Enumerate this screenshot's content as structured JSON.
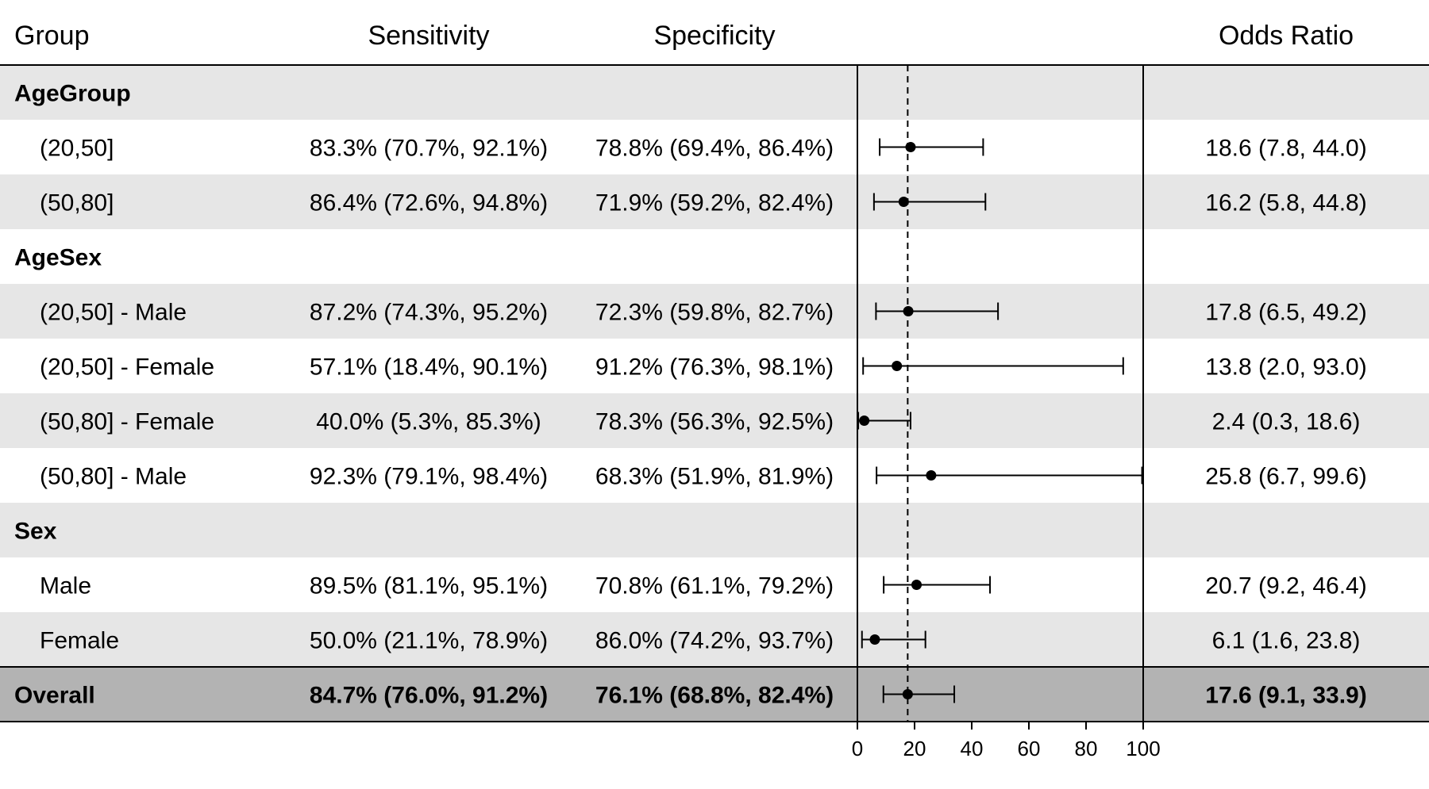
{
  "header": {
    "group": "Group",
    "sensitivity": "Sensitivity",
    "specificity": "Specificity",
    "odds_ratio": "Odds Ratio"
  },
  "rows": [
    {
      "kind": "section",
      "label": "AgeGroup",
      "shade": "light"
    },
    {
      "kind": "item",
      "label": "(20,50]",
      "sensitivity": "83.3% (70.7%, 92.1%)",
      "specificity": "78.8% (69.4%, 86.4%)",
      "odds_ratio": "18.6 (7.8, 44.0)",
      "shade": "white"
    },
    {
      "kind": "item",
      "label": "(50,80]",
      "sensitivity": "86.4% (72.6%, 94.8%)",
      "specificity": "71.9% (59.2%, 82.4%)",
      "odds_ratio": "16.2 (5.8, 44.8)",
      "shade": "light"
    },
    {
      "kind": "section",
      "label": "AgeSex",
      "shade": "white"
    },
    {
      "kind": "item",
      "label": "(20,50] - Male",
      "sensitivity": "87.2% (74.3%, 95.2%)",
      "specificity": "72.3% (59.8%, 82.7%)",
      "odds_ratio": "17.8 (6.5, 49.2)",
      "shade": "light"
    },
    {
      "kind": "item",
      "label": "(20,50] - Female",
      "sensitivity": "57.1% (18.4%, 90.1%)",
      "specificity": "91.2% (76.3%, 98.1%)",
      "odds_ratio": "13.8 (2.0, 93.0)",
      "shade": "white"
    },
    {
      "kind": "item",
      "label": "(50,80] - Female",
      "sensitivity": "40.0% (5.3%, 85.3%)",
      "specificity": "78.3% (56.3%, 92.5%)",
      "odds_ratio": "2.4 (0.3, 18.6)",
      "shade": "light"
    },
    {
      "kind": "item",
      "label": "(50,80] - Male",
      "sensitivity": "92.3% (79.1%, 98.4%)",
      "specificity": "68.3% (51.9%, 81.9%)",
      "odds_ratio": "25.8 (6.7, 99.6)",
      "shade": "white"
    },
    {
      "kind": "section",
      "label": "Sex",
      "shade": "light"
    },
    {
      "kind": "item",
      "label": "Male",
      "sensitivity": "89.5% (81.1%, 95.1%)",
      "specificity": "70.8% (61.1%, 79.2%)",
      "odds_ratio": "20.7 (9.2, 46.4)",
      "shade": "white"
    },
    {
      "kind": "item",
      "label": "Female",
      "sensitivity": "50.0% (21.1%, 78.9%)",
      "specificity": "86.0% (74.2%, 93.7%)",
      "odds_ratio": "6.1 (1.6, 23.8)",
      "shade": "light"
    },
    {
      "kind": "overall",
      "label": "Overall",
      "sensitivity": "84.7% (76.0%, 91.2%)",
      "specificity": "76.1% (68.8%, 82.4%)",
      "odds_ratio": "17.6 (9.1, 33.9)",
      "shade": "dark"
    }
  ],
  "colors": {
    "light": "#e6e6e6",
    "white": "#ffffff",
    "dark": "#b3b3b3",
    "line": "#000000"
  },
  "chart_data": {
    "type": "forest",
    "categories": [
      "(20,50]",
      "(50,80]",
      "(20,50] - Male",
      "(20,50] - Female",
      "(50,80] - Female",
      "(50,80] - Male",
      "Male",
      "Female",
      "Overall"
    ],
    "estimate": [
      18.6,
      16.2,
      17.8,
      13.8,
      2.4,
      25.8,
      20.7,
      6.1,
      17.6
    ],
    "lower": [
      7.8,
      5.8,
      6.5,
      2.0,
      0.3,
      6.7,
      9.2,
      1.6,
      9.1
    ],
    "upper": [
      44.0,
      44.8,
      49.2,
      93.0,
      18.6,
      99.6,
      46.4,
      23.8,
      33.9
    ],
    "reference_line": 17.6,
    "xlim": [
      0,
      100
    ],
    "xticks": [
      0,
      20,
      40,
      60,
      80,
      100
    ],
    "xlabel": "",
    "ylabel": "",
    "title": ""
  }
}
